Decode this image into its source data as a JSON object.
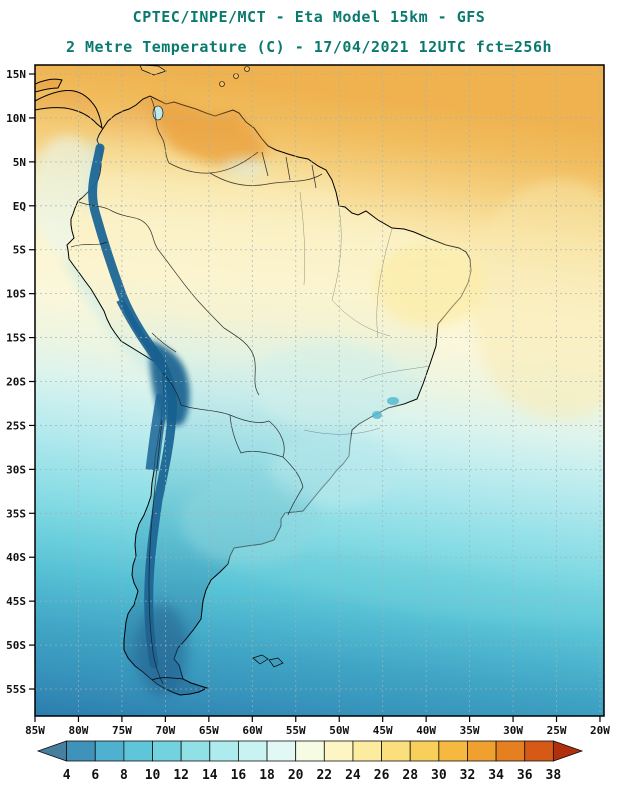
{
  "header": {
    "title_line1": "CPTEC/INPE/MCT -  Eta Model 15km - GFS",
    "title_line2": "2 Metre Temperature (C) - 17/04/2021 12UTC fct=256h",
    "title_color": "#0a7a6e"
  },
  "map": {
    "lat_labels": [
      "15N",
      "10N",
      "5N",
      "EQ",
      "5S",
      "10S",
      "15S",
      "20S",
      "25S",
      "30S",
      "35S",
      "40S",
      "45S",
      "50S",
      "55S"
    ],
    "lon_labels": [
      "85W",
      "80W",
      "75W",
      "70W",
      "65W",
      "60W",
      "55W",
      "50W",
      "45W",
      "40W",
      "35W",
      "30W",
      "25W",
      "20W"
    ]
  },
  "colorbar": {
    "tick_labels": [
      "4",
      "6",
      "8",
      "10",
      "12",
      "14",
      "16",
      "18",
      "20",
      "22",
      "24",
      "26",
      "28",
      "30",
      "32",
      "34",
      "36",
      "38"
    ],
    "colors": [
      "#47809f",
      "#3f93bb",
      "#4fb0cf",
      "#5ec6d8",
      "#72d3de",
      "#90e0e6",
      "#aeebee",
      "#c9f2f2",
      "#e2f8f5",
      "#f6fbe4",
      "#fdf5c3",
      "#fceca0",
      "#fbdf7d",
      "#f9cf5b",
      "#f5b93f",
      "#efa02f",
      "#e67f20",
      "#d65a16",
      "#b0300e"
    ]
  }
}
